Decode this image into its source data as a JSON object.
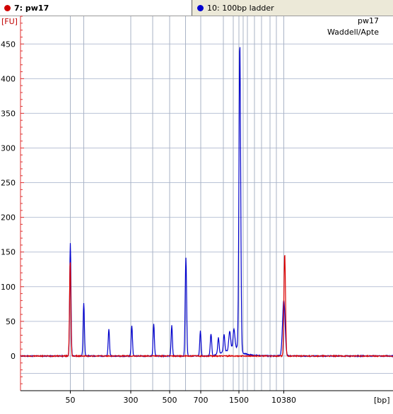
{
  "tabs": [
    {
      "label": "7: pw17",
      "color": "#d00000"
    },
    {
      "label": "10: 100bp ladder",
      "color": "#0000d0"
    }
  ],
  "chart_data": {
    "type": "line",
    "title": "pw17",
    "subtitle": "Waddell/Apte",
    "ylabel": "[FU]",
    "xlabel": "[bp]",
    "ylim": [
      -50,
      490
    ],
    "yticks": [
      0,
      50,
      100,
      150,
      200,
      250,
      300,
      350,
      400,
      450
    ],
    "xticks": [
      {
        "pos": 99.5,
        "label": "50"
      },
      {
        "pos": 185,
        "label": "300"
      },
      {
        "pos": 240,
        "label": "500"
      },
      {
        "pos": 284,
        "label": "700"
      },
      {
        "pos": 338,
        "label": "1500"
      },
      {
        "pos": 401.5,
        "label": "10380"
      }
    ],
    "ladder_lines": [
      99.5,
      118.5,
      185,
      216,
      240,
      262.5,
      284,
      316,
      330,
      338,
      344,
      350,
      360,
      370,
      382,
      391,
      401.5
    ],
    "grid": true,
    "series": [
      {
        "name": "10: 100bp ladder",
        "color": "#0000cc",
        "peaks": [
          {
            "center": 99.5,
            "height": 163,
            "width": 0.9
          },
          {
            "center": 118.5,
            "height": 77,
            "width": 0.9
          },
          {
            "center": 154,
            "height": 39,
            "width": 0.9
          },
          {
            "center": 186.5,
            "height": 44,
            "width": 0.9
          },
          {
            "center": 217.5,
            "height": 46,
            "width": 0.9
          },
          {
            "center": 243,
            "height": 44,
            "width": 0.9
          },
          {
            "center": 263,
            "height": 142,
            "width": 1.0
          },
          {
            "center": 283.5,
            "height": 36,
            "width": 0.9
          },
          {
            "center": 298.5,
            "height": 32,
            "width": 1.0
          },
          {
            "center": 309,
            "height": 23,
            "width": 1.0
          },
          {
            "center": 317,
            "height": 25,
            "width": 1.0
          },
          {
            "center": 325,
            "height": 27,
            "width": 1.3
          },
          {
            "center": 331,
            "height": 28,
            "width": 1.3
          },
          {
            "center": 339.3,
            "height": 438,
            "width": 1.2
          },
          {
            "center": 401.5,
            "height": 80,
            "width": 1.8
          }
        ],
        "baseline": 0
      },
      {
        "name": "7: pw17",
        "color": "#dd0000",
        "peaks": [
          {
            "center": 99.3,
            "height": 138,
            "width": 0.9
          },
          {
            "center": 402.8,
            "height": 148,
            "width": 1.1
          }
        ],
        "baseline": 0
      }
    ]
  }
}
